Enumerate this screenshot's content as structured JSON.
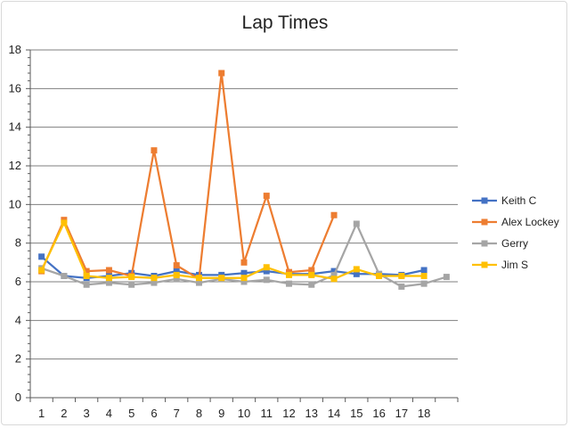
{
  "chart_data": {
    "type": "line",
    "title": "Lap Times",
    "xlabel": "",
    "ylabel": "",
    "categories": [
      "1",
      "2",
      "3",
      "4",
      "5",
      "6",
      "7",
      "8",
      "9",
      "10",
      "11",
      "12",
      "13",
      "14",
      "15",
      "16",
      "17",
      "18",
      ""
    ],
    "ylim": [
      0,
      18
    ],
    "yticks": [
      0,
      2,
      4,
      6,
      8,
      10,
      12,
      14,
      16,
      18
    ],
    "grid": true,
    "legend_position": "right",
    "series": [
      {
        "name": "Keith C",
        "color": "#4472C4",
        "values": [
          7.3,
          6.3,
          6.2,
          6.3,
          6.45,
          6.3,
          6.55,
          6.35,
          6.35,
          6.45,
          6.55,
          6.4,
          6.4,
          6.55,
          6.4,
          6.4,
          6.35,
          6.6,
          null
        ]
      },
      {
        "name": "Alex Lockey",
        "color": "#ED7D31",
        "values": [
          6.55,
          9.2,
          6.55,
          6.6,
          6.3,
          12.8,
          6.85,
          6.15,
          16.8,
          7.0,
          10.45,
          6.5,
          6.6,
          9.45,
          null,
          null,
          null,
          null,
          null
        ]
      },
      {
        "name": "Gerry",
        "color": "#A5A5A5",
        "values": [
          6.7,
          6.3,
          5.85,
          5.95,
          5.85,
          5.95,
          6.15,
          5.95,
          6.15,
          6.0,
          6.1,
          5.9,
          5.85,
          6.35,
          9.0,
          6.4,
          5.75,
          5.9,
          6.25
        ]
      },
      {
        "name": "Jim S",
        "color": "#FFC000",
        "values": [
          6.6,
          9.05,
          6.3,
          6.2,
          6.25,
          6.2,
          6.35,
          6.2,
          6.2,
          6.2,
          6.75,
          6.35,
          6.35,
          6.15,
          6.65,
          6.3,
          6.3,
          6.3,
          null
        ]
      }
    ]
  }
}
